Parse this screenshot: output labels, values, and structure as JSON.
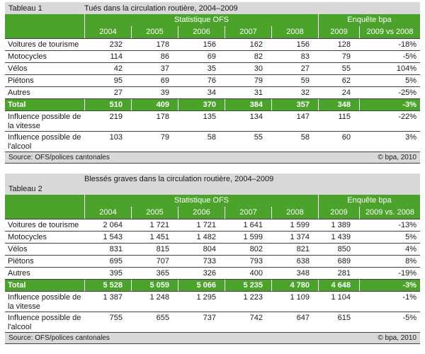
{
  "colors": {
    "green": "#4CA32C",
    "gray": "#D9D9D9",
    "line": "#404040",
    "white": "#FFFFFF",
    "text": "#1A1A1A"
  },
  "tables": [
    {
      "label": "Tableau 1",
      "title": "Tués dans la circulation routière, 2004–2009",
      "groups": {
        "ofs": "Statistique OFS",
        "bpa": "Enquête bpa"
      },
      "years": [
        "2004",
        "2005",
        "2006",
        "2007",
        "2008",
        "2009",
        "2009 vs 2008"
      ],
      "rows": [
        {
          "label": "Voitures de tourisme",
          "values": [
            "232",
            "178",
            "156",
            "162",
            "156",
            "128",
            "-18%"
          ]
        },
        {
          "label": "Motocycles",
          "values": [
            "114",
            "86",
            "69",
            "82",
            "83",
            "79",
            "-5%"
          ]
        },
        {
          "label": "Vélos",
          "values": [
            "42",
            "37",
            "35",
            "30",
            "27",
            "55",
            "104%"
          ]
        },
        {
          "label": "Piétons",
          "values": [
            "95",
            "69",
            "76",
            "79",
            "59",
            "62",
            "5%"
          ]
        },
        {
          "label": "Autres",
          "values": [
            "27",
            "39",
            "34",
            "31",
            "32",
            "24",
            "-25%"
          ]
        },
        {
          "label": "Total",
          "total": true,
          "values": [
            "510",
            "409",
            "370",
            "384",
            "357",
            "348",
            "-3%"
          ]
        },
        {
          "label": "Influence possible de la vitesse",
          "values": [
            "219",
            "178",
            "135",
            "134",
            "147",
            "115",
            "-22%"
          ]
        },
        {
          "label": "Influence possible de l'alcool",
          "values": [
            "103",
            "79",
            "58",
            "55",
            "58",
            "60",
            "3%"
          ]
        }
      ],
      "source": "Source: OFS/polices cantonales",
      "copyright": "© bpa, 2010"
    },
    {
      "label": "Tableau 2",
      "title": "Blessés graves dans la circulation routière, 2004–2009",
      "groups": {
        "ofs": "Statistique OFS",
        "bpa": "Enquête bpa"
      },
      "years": [
        "2004",
        "2005",
        "2006",
        "2007",
        "2008",
        "2009",
        "2009 vs. 2008"
      ],
      "rows": [
        {
          "label": "Voitures de tourisme",
          "values": [
            "2 064",
            "1 721",
            "1 721",
            "1 641",
            "1 599",
            "1 389",
            "-13%"
          ]
        },
        {
          "label": "Motocycles",
          "values": [
            "1 543",
            "1 451",
            "1 482",
            "1 599",
            "1 374",
            "1 439",
            "5%"
          ]
        },
        {
          "label": "Vélos",
          "values": [
            "831",
            "815",
            "804",
            "802",
            "821",
            "850",
            "4%"
          ]
        },
        {
          "label": "Piétons",
          "values": [
            "695",
            "707",
            "733",
            "793",
            "638",
            "689",
            "8%"
          ]
        },
        {
          "label": "Autres",
          "values": [
            "395",
            "365",
            "326",
            "400",
            "348",
            "281",
            "-19%"
          ]
        },
        {
          "label": "Total",
          "total": true,
          "values": [
            "5 528",
            "5 059",
            "5 066",
            "5 235",
            "4 780",
            "4 648",
            "-3%"
          ]
        },
        {
          "label": "Influence possible de la vitesse",
          "values": [
            "1 387",
            "1 248",
            "1 295",
            "1 223",
            "1 109",
            "1 104",
            "-1%"
          ]
        },
        {
          "label": "Influence possible de l'alcool",
          "values": [
            "755",
            "655",
            "737",
            "742",
            "647",
            "615",
            "-5%"
          ]
        }
      ],
      "source": "Source: OFS/polices cantonales",
      "copyright": "© bpa, 2010"
    }
  ]
}
